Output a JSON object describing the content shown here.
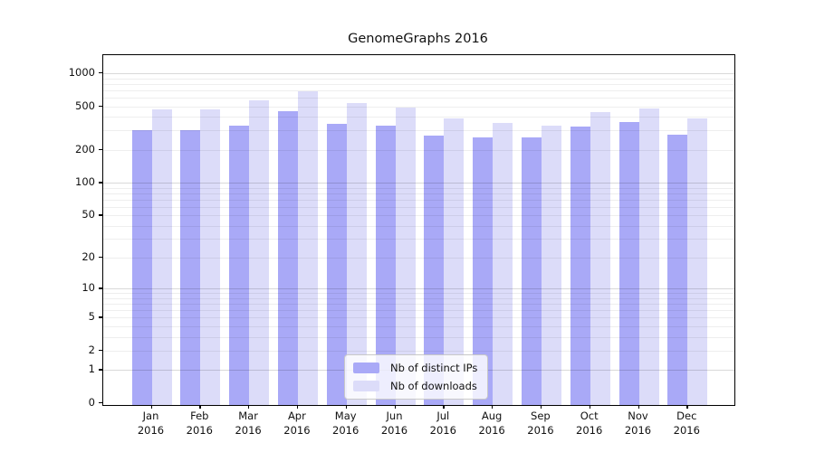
{
  "title": "GenomeGraphs 2016",
  "chart_data": {
    "type": "bar",
    "title": "GenomeGraphs 2016",
    "scale": "log1p",
    "grid": true,
    "legend_position": "bottom-center-inside",
    "year": "2016",
    "categories": [
      "Jan",
      "Feb",
      "Mar",
      "Apr",
      "May",
      "Jun",
      "Jul",
      "Aug",
      "Sep",
      "Oct",
      "Nov",
      "Dec"
    ],
    "yticks": [
      0,
      1,
      2,
      5,
      10,
      20,
      50,
      100,
      200,
      500,
      1000
    ],
    "ylim": [
      0,
      1300
    ],
    "series": [
      {
        "name": "Nb of distinct IPs",
        "color": "#a9a9f7",
        "values": [
          300,
          300,
          335,
          450,
          345,
          335,
          270,
          260,
          260,
          325,
          360,
          275
        ]
      },
      {
        "name": "Nb of downloads",
        "color": "#dcdcf9",
        "values": [
          470,
          470,
          565,
          685,
          530,
          485,
          385,
          350,
          330,
          440,
          480,
          390
        ]
      }
    ]
  }
}
